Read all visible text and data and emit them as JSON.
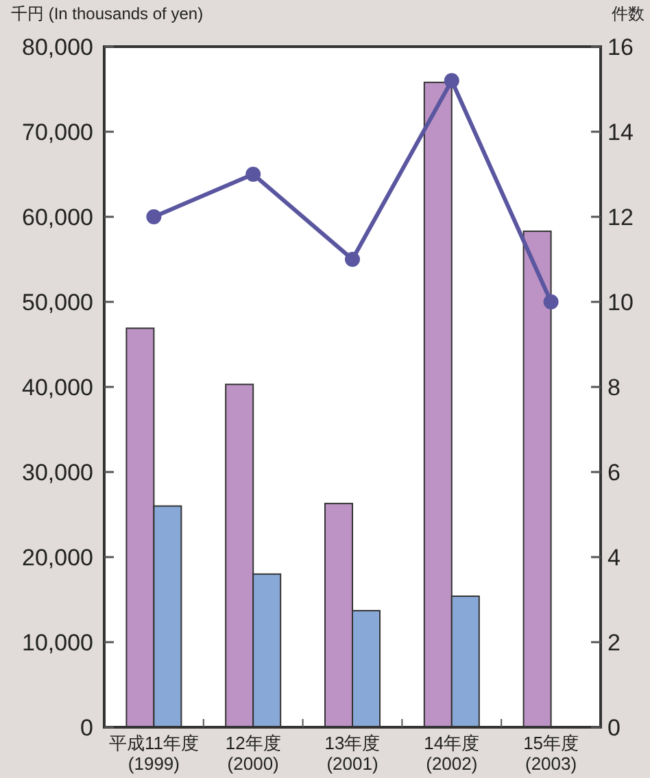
{
  "chart_data": {
    "type": "bar",
    "ylabel": "千円 (In thousands of yen)",
    "y2label": "件数",
    "categories": [
      "平成11年度\n(1999)",
      "12年度\n(2000)",
      "13年度\n(2001)",
      "14年度\n(2002)",
      "15年度\n(2003)"
    ],
    "series": [
      {
        "color": "#bc93c4",
        "values": [
          46900,
          40300,
          26300,
          75800,
          58300
        ]
      },
      {
        "color": "#88a9d8",
        "values": [
          26000,
          18000,
          13700,
          15400,
          null
        ]
      },
      {
        "type": "line",
        "axis": "y2",
        "color": "#5a56a0",
        "marker": "circle",
        "line_style": "solid",
        "values": [
          12,
          13,
          11,
          15.2,
          10
        ]
      }
    ],
    "ylim": [
      0,
      80000
    ],
    "yticks": [
      0,
      {
        "value": 10000,
        "label": "10,000"
      },
      {
        "value": 20000,
        "label": "20,000"
      },
      {
        "value": 30000,
        "label": "30,000"
      },
      {
        "value": 40000,
        "label": "40,000"
      },
      {
        "value": 50000,
        "label": "50,000"
      },
      {
        "value": 60000,
        "label": "60,000"
      },
      {
        "value": 70000,
        "label": "70,000"
      },
      {
        "value": 80000,
        "label": "80,000"
      }
    ],
    "y2lim": [
      0,
      16
    ],
    "y2ticks": [
      0,
      2,
      4,
      6,
      8,
      10,
      12,
      14,
      16
    ],
    "grid": false
  }
}
